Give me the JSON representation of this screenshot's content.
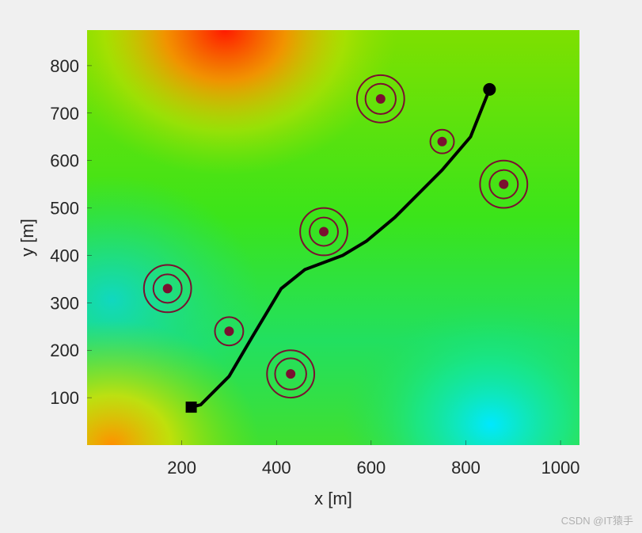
{
  "chart_data": {
    "type": "path-map",
    "xlabel": "x [m]",
    "ylabel": "y [m]",
    "xlim": [
      0,
      1040
    ],
    "ylim": [
      0,
      875
    ],
    "xticks": [
      200,
      400,
      600,
      800,
      1000
    ],
    "yticks": [
      100,
      200,
      300,
      400,
      500,
      600,
      700,
      800
    ],
    "path": {
      "color": "#000000",
      "x": [
        220,
        240,
        300,
        350,
        410,
        460,
        540,
        590,
        650,
        700,
        750,
        810,
        830,
        850
      ],
      "y": [
        80,
        85,
        145,
        230,
        330,
        370,
        400,
        430,
        480,
        530,
        580,
        650,
        700,
        750
      ]
    },
    "threats": {
      "color": "#7a1030",
      "x": [
        620,
        750,
        880,
        500,
        170,
        300,
        430
      ],
      "y": [
        730,
        640,
        550,
        450,
        330,
        240,
        150
      ],
      "radii": [
        [
          32,
          50
        ],
        [
          25
        ],
        [
          30,
          50
        ],
        [
          30,
          50
        ],
        [
          30,
          50
        ],
        [
          30
        ],
        [
          33,
          50
        ]
      ]
    },
    "watermark": "CSDN @IT猿手"
  }
}
